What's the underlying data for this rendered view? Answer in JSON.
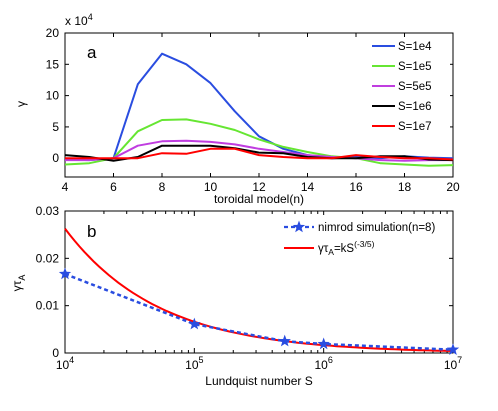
{
  "chart_data": [
    {
      "type": "line",
      "panel_label": "a",
      "xlabel": "toroidal model(n)",
      "ylabel": "γ",
      "y_multiplier": "x 10",
      "y_multiplier_exp": "4",
      "xlim": [
        4,
        20
      ],
      "ylim": [
        -3,
        20
      ],
      "xticks": [
        4,
        6,
        8,
        10,
        12,
        14,
        16,
        18,
        20
      ],
      "yticks": [
        0,
        5,
        10,
        15,
        20
      ],
      "legend": "top-right",
      "x": [
        4,
        5,
        6,
        7,
        8,
        9,
        10,
        11,
        12,
        13,
        14,
        15,
        16,
        17,
        18,
        19,
        20
      ],
      "series": [
        {
          "name": "S=1e4",
          "color": "#2a4de0",
          "values": [
            -0.2,
            -0.3,
            0,
            11.8,
            16.7,
            15.0,
            12.0,
            7.5,
            3.5,
            1.5,
            0.5,
            0,
            0.2,
            0,
            0.3,
            0.1,
            0
          ]
        },
        {
          "name": "S=1e5",
          "color": "#66e632",
          "values": [
            -1.0,
            -0.8,
            0,
            4.3,
            6.1,
            6.2,
            5.5,
            4.5,
            3.0,
            1.8,
            1.0,
            0.3,
            0,
            -0.8,
            -1.0,
            -1.2,
            -1.1
          ]
        },
        {
          "name": "S=5e5",
          "color": "#c03de0",
          "values": [
            -0.3,
            -0.3,
            0,
            2.0,
            2.7,
            2.8,
            2.6,
            2.2,
            1.5,
            1.0,
            0.5,
            0.2,
            0,
            -0.3,
            -0.4,
            -0.3,
            -0.3
          ]
        },
        {
          "name": "S=1e6",
          "color": "#000000",
          "values": [
            0.5,
            0.2,
            -0.4,
            0.2,
            2.0,
            2.0,
            2.0,
            1.6,
            0.9,
            0.8,
            0.2,
            0,
            0,
            0.3,
            0.3,
            -0.2,
            -0.3
          ]
        },
        {
          "name": "S=1e7",
          "color": "#ff0000",
          "values": [
            0,
            0,
            0,
            0,
            0.8,
            0.7,
            1.5,
            1.5,
            0.5,
            0.2,
            0,
            0,
            0.5,
            0.2,
            0,
            0,
            -0.2
          ]
        }
      ]
    },
    {
      "type": "line",
      "panel_label": "b",
      "xlabel": "Lundquist number S",
      "ylabel": "γτ",
      "ylabel_sub": "A",
      "x_scale": "log",
      "xlim": [
        10000,
        10000000
      ],
      "ylim": [
        0,
        0.03
      ],
      "xticks": [
        "10",
        "10",
        "10",
        "10"
      ],
      "xtick_exps": [
        "4",
        "5",
        "6",
        "7"
      ],
      "yticks": [
        "0",
        "0.01",
        "0.02",
        "0.03"
      ],
      "legend": "top-right",
      "series": [
        {
          "name": "nimrod simulation(n=8)",
          "color": "#2a4de0",
          "style": "dashed-star",
          "x": [
            10000,
            100000,
            500000,
            1000000,
            10000000
          ],
          "values": [
            0.0167,
            0.0061,
            0.0025,
            0.0019,
            0.0007
          ]
        },
        {
          "name_main": "γτ",
          "name_sub": "A",
          "name_rest": "=kS",
          "name_sup": "(-3/5)",
          "color": "#ff0000",
          "style": "solid",
          "x": [
            10000,
            10000000
          ],
          "k": 6.6,
          "exponent": -0.6
        }
      ]
    }
  ]
}
